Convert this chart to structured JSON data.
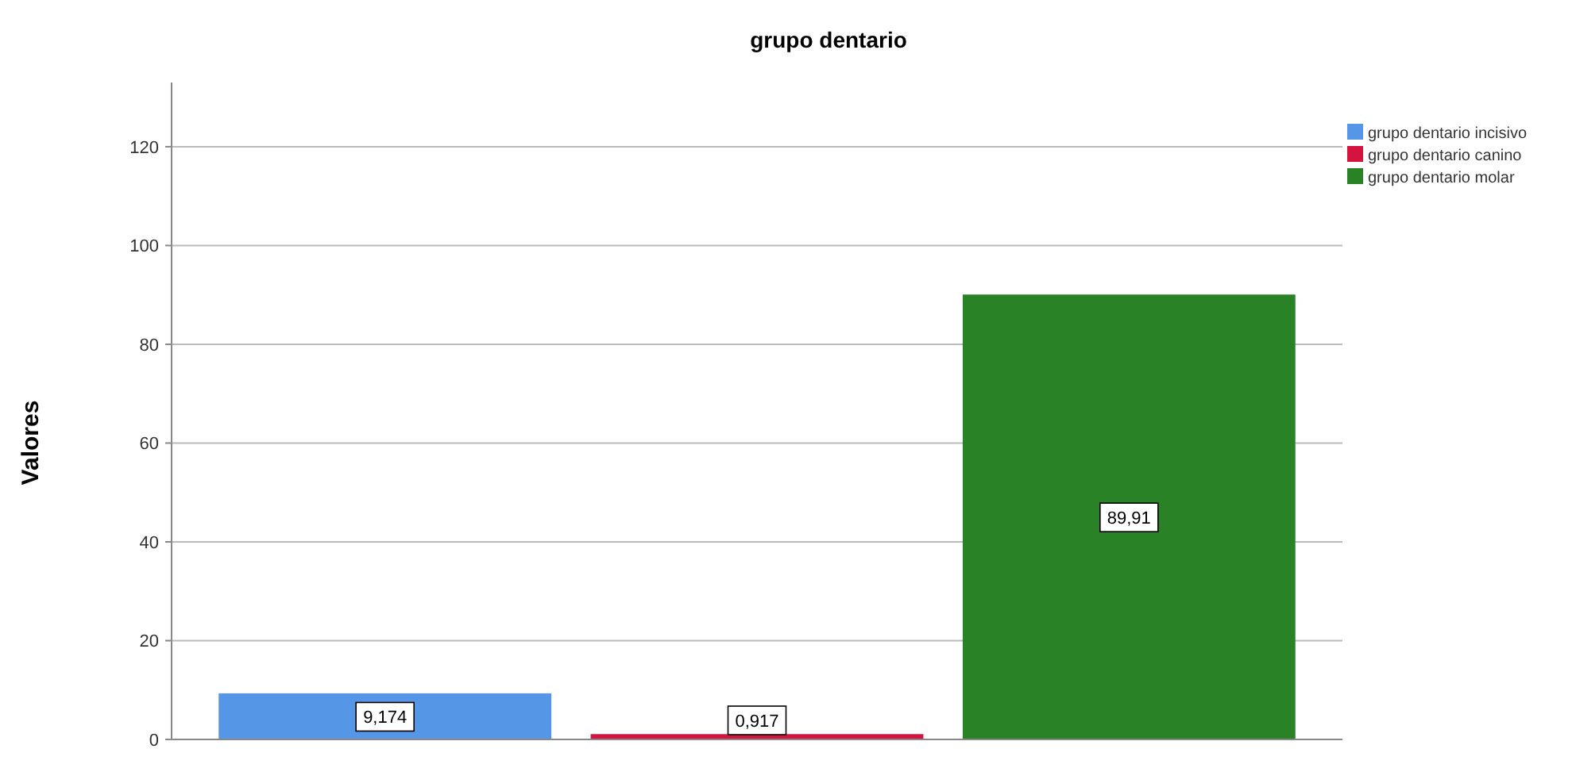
{
  "chart_data": {
    "type": "bar",
    "title": "grupo dentario",
    "ylabel": "Valores",
    "categories": [
      null
    ],
    "series": [
      {
        "name": "grupo dentario incisivo",
        "color": "#5596e6",
        "values": [
          9.174
        ],
        "value_labels": [
          "9,174"
        ]
      },
      {
        "name": "grupo dentario canino",
        "color": "#d4143e",
        "values": [
          0.917
        ],
        "value_labels": [
          "0,917"
        ]
      },
      {
        "name": "grupo dentario molar",
        "color": "#2a8227",
        "values": [
          89.91
        ],
        "value_labels": [
          "89,91"
        ]
      }
    ],
    "ylim": [
      0,
      133
    ],
    "yticks": [
      0,
      20,
      40,
      60,
      80,
      100,
      120
    ],
    "grid": "y",
    "legend": "top right"
  }
}
